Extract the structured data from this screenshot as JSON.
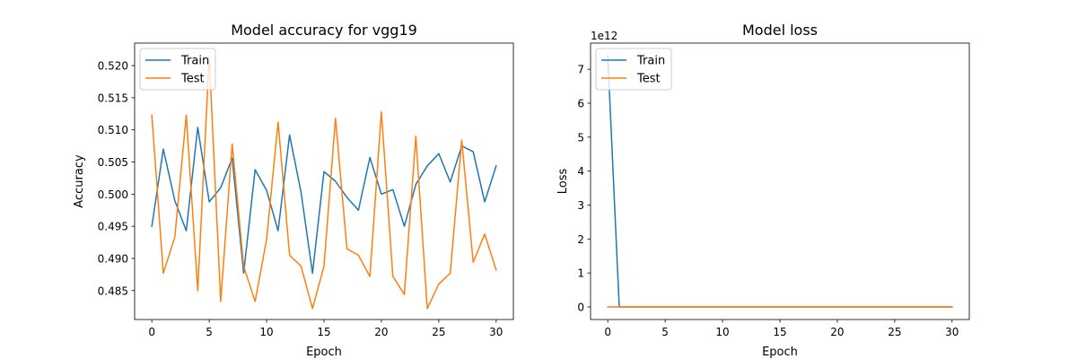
{
  "chart_data": [
    {
      "type": "line",
      "title": "Model accuracy for vgg19",
      "xlabel": "Epoch",
      "ylabel": "Accuracy",
      "xlim": [
        -1.5,
        31.5
      ],
      "ylim": [
        0.4805,
        0.5235
      ],
      "xticks": [
        0,
        5,
        10,
        15,
        20,
        25,
        30
      ],
      "xtick_labels": [
        "0",
        "5",
        "10",
        "15",
        "20",
        "25",
        "30"
      ],
      "yticks": [
        0.485,
        0.49,
        0.495,
        0.5,
        0.505,
        0.51,
        0.515,
        0.52
      ],
      "ytick_labels": [
        "0.485",
        "0.490",
        "0.495",
        "0.500",
        "0.505",
        "0.510",
        "0.515",
        "0.520"
      ],
      "grid": false,
      "legend_position": "upper-left",
      "x": [
        0,
        1,
        2,
        3,
        4,
        5,
        6,
        7,
        8,
        9,
        10,
        11,
        12,
        13,
        14,
        15,
        16,
        17,
        18,
        19,
        20,
        21,
        22,
        23,
        24,
        25,
        26,
        27,
        28,
        29,
        30
      ],
      "series": [
        {
          "name": "Train",
          "color": "#1f77b4",
          "values": [
            0.495,
            0.507,
            0.499,
            0.4943,
            0.5104,
            0.4988,
            0.501,
            0.5056,
            0.4877,
            0.5038,
            0.5006,
            0.4943,
            0.5092,
            0.5003,
            0.4877,
            0.5035,
            0.502,
            0.4995,
            0.4975,
            0.5057,
            0.5,
            0.5007,
            0.495,
            0.5015,
            0.5044,
            0.5063,
            0.5019,
            0.5075,
            0.5066,
            0.4988,
            0.5044
          ]
        },
        {
          "name": "Test",
          "color": "#ff7f0e",
          "values": [
            0.5123,
            0.4877,
            0.4933,
            0.5123,
            0.485,
            0.5215,
            0.4833,
            0.5078,
            0.4888,
            0.4833,
            0.493,
            0.5112,
            0.4905,
            0.4888,
            0.4822,
            0.4888,
            0.5118,
            0.4915,
            0.4905,
            0.4872,
            0.5128,
            0.4872,
            0.4844,
            0.509,
            0.4822,
            0.486,
            0.4877,
            0.5084,
            0.4894,
            0.4938,
            0.4882
          ]
        }
      ]
    },
    {
      "type": "line",
      "title": "Model loss",
      "xlabel": "Epoch",
      "ylabel": "Loss",
      "offset_text": "1e12",
      "xlim": [
        -1.5,
        31.5
      ],
      "ylim": [
        -0.37,
        7.77
      ],
      "xticks": [
        0,
        5,
        10,
        15,
        20,
        25,
        30
      ],
      "xtick_labels": [
        "0",
        "5",
        "10",
        "15",
        "20",
        "25",
        "30"
      ],
      "yticks": [
        0,
        1,
        2,
        3,
        4,
        5,
        6,
        7
      ],
      "ytick_labels": [
        "0",
        "1",
        "2",
        "3",
        "4",
        "5",
        "6",
        "7"
      ],
      "grid": false,
      "legend_position": "upper-left",
      "x": [
        0,
        1,
        2,
        3,
        4,
        5,
        6,
        7,
        8,
        9,
        10,
        11,
        12,
        13,
        14,
        15,
        16,
        17,
        18,
        19,
        20,
        21,
        22,
        23,
        24,
        25,
        26,
        27,
        28,
        29,
        30
      ],
      "series": [
        {
          "name": "Train",
          "color": "#1f77b4",
          "values": [
            7.4,
            0,
            0,
            0,
            0,
            0,
            0,
            0,
            0,
            0,
            0,
            0,
            0,
            0,
            0,
            0,
            0,
            0,
            0,
            0,
            0,
            0,
            0,
            0,
            0,
            0,
            0,
            0,
            0,
            0,
            0
          ]
        },
        {
          "name": "Test",
          "color": "#ff7f0e",
          "values": [
            0,
            0,
            0,
            0,
            0,
            0,
            0,
            0,
            0,
            0,
            0,
            0,
            0,
            0,
            0,
            0,
            0,
            0,
            0,
            0,
            0,
            0,
            0,
            0,
            0,
            0,
            0,
            0,
            0,
            0,
            0
          ]
        }
      ]
    }
  ]
}
